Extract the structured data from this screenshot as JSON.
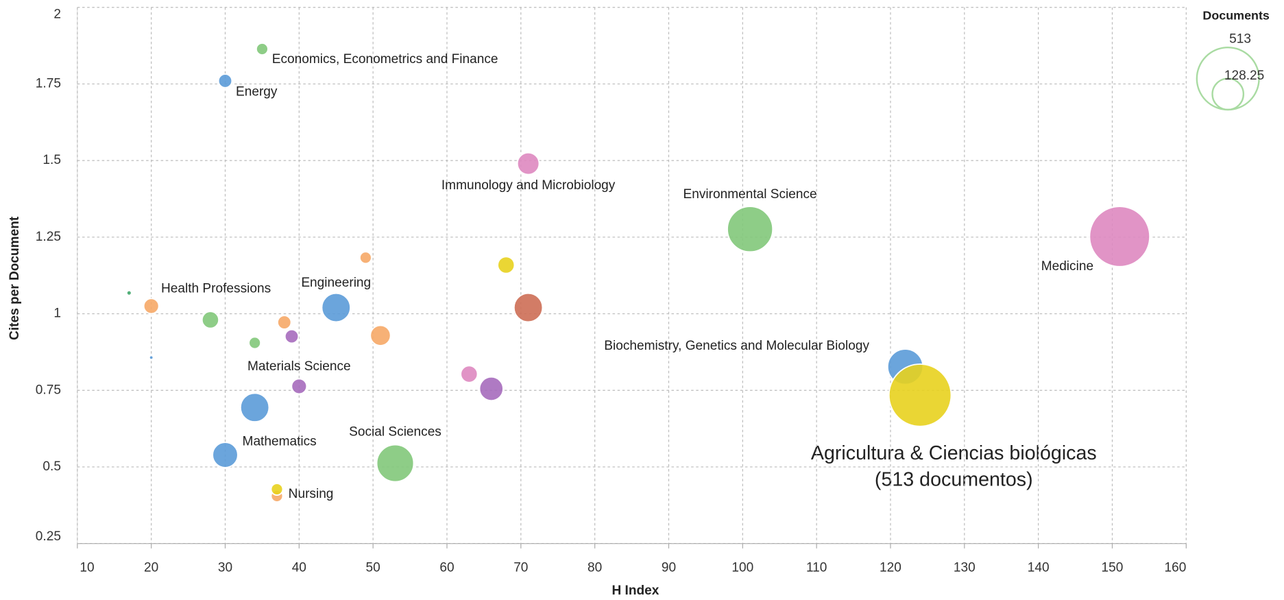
{
  "chart_data": {
    "type": "scatter",
    "x_label": "H Index",
    "y_label": "Cites per Document",
    "xlim": [
      10,
      160
    ],
    "ylim": [
      0.25,
      2
    ],
    "xticks": [
      10,
      20,
      30,
      40,
      50,
      60,
      70,
      80,
      90,
      100,
      110,
      120,
      130,
      140,
      150,
      160
    ],
    "yticks": [
      0.25,
      0.5,
      0.75,
      1,
      1.25,
      1.5,
      1.75,
      2
    ],
    "grid": true,
    "x": [
      35,
      30,
      71,
      101,
      151,
      20,
      17,
      20,
      28,
      34,
      38,
      39,
      45,
      49,
      51,
      68,
      71,
      40,
      34,
      30,
      53,
      37,
      37,
      63,
      66,
      122,
      124
    ],
    "y": [
      1.864,
      1.76,
      1.49,
      1.276,
      1.252,
      1.025,
      1.068,
      0.857,
      0.98,
      0.905,
      0.972,
      0.926,
      1.02,
      1.183,
      0.929,
      1.159,
      1.02,
      0.763,
      0.694,
      0.539,
      0.512,
      0.405,
      0.427,
      0.803,
      0.755,
      0.827,
      0.734
    ],
    "sizes": [
      18,
      24,
      63,
      273,
      480,
      30,
      3,
      2,
      37,
      18,
      24,
      24,
      108,
      18,
      54,
      37,
      108,
      30,
      108,
      84,
      181,
      18,
      18,
      37,
      74,
      165,
      513
    ],
    "colors": [
      "#82c87a",
      "#5b9bd8",
      "#de88c0",
      "#82c87a",
      "#de88c0",
      "#f6a867",
      "#3fa66a",
      "#5b9bd8",
      "#82c87a",
      "#82c87a",
      "#f6a867",
      "#a66bbd",
      "#5b9bd8",
      "#f6a867",
      "#f6a867",
      "#e8d21e",
      "#cd6e55",
      "#a66bbd",
      "#5b9bd8",
      "#5b9bd8",
      "#82c87a",
      "#f6a867",
      "#e8d21e",
      "#de88c0",
      "#a66bbd",
      "#5b9bd8",
      "#e8d21e"
    ],
    "labels": [
      "Economics, Econometrics and Finance",
      "Energy",
      "Immunology and Microbiology",
      "Environmental Science",
      "Medicine",
      "Health Professions",
      null,
      null,
      null,
      null,
      null,
      null,
      "Engineering",
      null,
      null,
      null,
      null,
      "Materials Science",
      null,
      "Mathematics",
      "Social Sciences",
      null,
      "Nursing",
      null,
      null,
      "Biochemistry, Genetics and Molecular Biology",
      null
    ],
    "annotation": [
      "Agricultura & Ciencias biológicas",
      "(513 documentos)"
    ],
    "size_legend": {
      "title": "Documents",
      "values": [
        513,
        128.25
      ]
    }
  }
}
